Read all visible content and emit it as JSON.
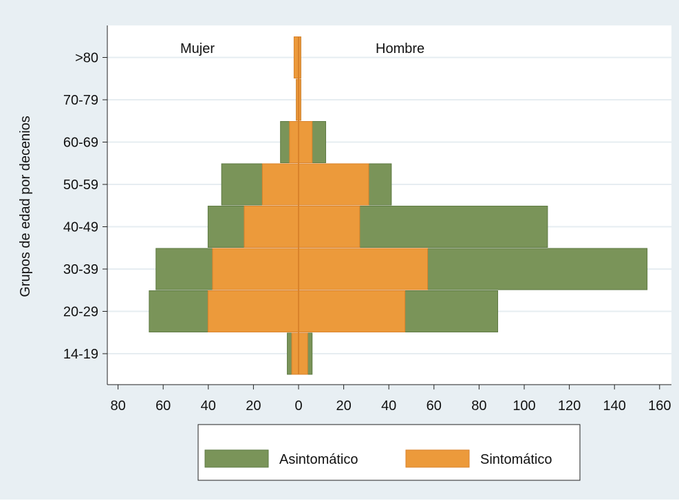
{
  "chart_data": {
    "type": "bar",
    "orientation": "horizontal",
    "subtype": "population-pyramid",
    "ylabel": "Grupos de edad por decenios",
    "xlabel": "",
    "categories": [
      "14-19",
      "20-29",
      "30-39",
      "40-49",
      "50-59",
      "60-69",
      "70-79",
      ">80"
    ],
    "x_ticks": [
      "80",
      "60",
      "40",
      "20",
      "0",
      "20",
      "40",
      "60",
      "80",
      "100",
      "120",
      "140",
      "160"
    ],
    "xlim": [
      -80,
      160
    ],
    "grid": true,
    "legend_position": "bottom",
    "annotations": {
      "left": "Mujer",
      "right": "Hombre"
    },
    "series": [
      {
        "name": "Asintomático",
        "color": "#7a9459",
        "mujer": [
          5,
          66,
          63,
          40,
          34,
          8,
          1,
          1
        ],
        "hombre": [
          6,
          88,
          154,
          110,
          41,
          12,
          1,
          1
        ]
      },
      {
        "name": "Sintomático",
        "color": "#ec9a3b",
        "mujer": [
          3,
          40,
          38,
          24,
          16,
          4,
          1,
          2
        ],
        "hombre": [
          4,
          47,
          57,
          27,
          31,
          6,
          1,
          1
        ]
      }
    ]
  },
  "colors": {
    "background": "#e8eff3",
    "plot_background": "#ffffff",
    "grid": "#e6edf1",
    "bar_edge_green": "#5e7a43",
    "bar_edge_orange": "#d9822b"
  }
}
